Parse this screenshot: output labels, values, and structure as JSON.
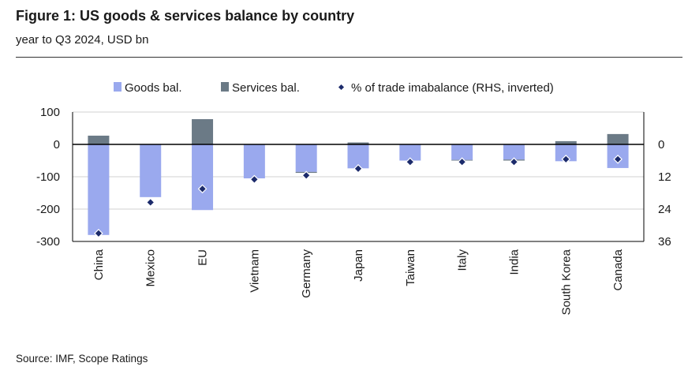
{
  "title": "Figure 1: US goods & services balance by country",
  "subtitle": "year to Q3 2024, USD bn",
  "source": "Source: IMF, Scope Ratings",
  "colors": {
    "goods": "#9aa9ee",
    "services": "#6b7a86",
    "percent": "#1c2b6b",
    "grid": "#d0d0d0",
    "axis": "#000000"
  },
  "chart_data": {
    "type": "bar",
    "categories": [
      "China",
      "Mexico",
      "EU",
      "Vietnam",
      "Germany",
      "Japan",
      "Taiwan",
      "Italy",
      "India",
      "South Korea",
      "Canada"
    ],
    "series": [
      {
        "name": "Goods bal.",
        "type": "bar",
        "values": [
          -280,
          -163,
          -203,
          -105,
          -85,
          -74,
          -50,
          -48,
          -47,
          -52,
          -73
        ]
      },
      {
        "name": "Services bal.",
        "type": "bar",
        "values": [
          27,
          0,
          78,
          0,
          -3,
          6,
          0,
          -2,
          -3,
          10,
          32
        ]
      },
      {
        "name": "% of trade imabalance (RHS, inverted)",
        "type": "scatter",
        "axis": "right",
        "values": [
          33,
          21.5,
          16.5,
          13,
          11.5,
          9,
          6.5,
          6.5,
          6.5,
          5.5,
          5.5
        ]
      }
    ],
    "y_left": {
      "ticks": [
        100,
        0,
        -100,
        -200,
        -300
      ],
      "labels": [
        "100",
        "0",
        "-100",
        "-200",
        "-300"
      ],
      "ylim": [
        -300,
        100
      ]
    },
    "y_right": {
      "ticks": [
        0,
        12,
        24,
        36
      ],
      "labels": [
        "0",
        "12",
        "24",
        "36"
      ],
      "inverted": true
    },
    "legend_position": "top",
    "grid": true
  }
}
